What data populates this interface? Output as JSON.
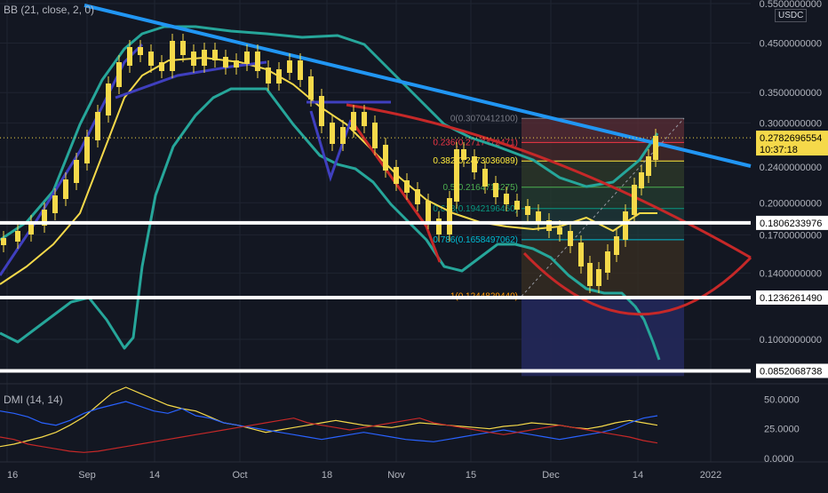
{
  "indicators": {
    "bb_label": "BB (21, close, 2, 0)",
    "dmi_label": "DMI (14, 14)"
  },
  "currency_badge": "USDC",
  "price_axis": {
    "ticks": [
      {
        "label": "0.5500000000",
        "value": 0.55
      },
      {
        "label": "0.4500000000",
        "value": 0.45
      },
      {
        "label": "0.3500000000",
        "value": 0.35
      },
      {
        "label": "0.3000000000",
        "value": 0.3
      },
      {
        "label": "0.2400000000",
        "value": 0.24
      },
      {
        "label": "0.2000000000",
        "value": 0.2
      },
      {
        "label": "0.1700000000",
        "value": 0.17
      },
      {
        "label": "0.1400000000",
        "value": 0.14
      },
      {
        "label": "0.1000000000",
        "value": 0.1
      }
    ],
    "tags": [
      {
        "label": "0.2782696554",
        "sub": "10:37:18",
        "value": 0.2782696554,
        "bg": "#f5d94a",
        "fg": "#000000"
      },
      {
        "label": "0.1806233976",
        "value": 0.1806233976,
        "bg": "#ffffff",
        "fg": "#000000"
      },
      {
        "label": "0.1236261490",
        "value": 0.123626149,
        "bg": "#ffffff",
        "fg": "#000000"
      },
      {
        "label": "0.0852068738",
        "value": 0.0852068738,
        "bg": "#ffffff",
        "fg": "#000000"
      }
    ]
  },
  "time_axis": [
    "16",
    "Sep",
    "14",
    "Oct",
    "18",
    "Nov",
    "15",
    "Dec",
    "14",
    "2022"
  ],
  "dmi_axis": [
    "50.0000",
    "25.0000",
    "0.0000"
  ],
  "fib_levels": [
    {
      "label": "0(0.3070412100)",
      "value": 0.30704121,
      "color": "#787b86"
    },
    {
      "label": "0.236(0.2717472471)",
      "value": 0.2717472471,
      "color": "#f23645"
    },
    {
      "label": "0.382(0.2473036089)",
      "value": 0.2473036089,
      "color": "#ffeb3b"
    },
    {
      "label": "0.5(0.2164714275)",
      "value": 0.2164714275,
      "color": "#4caf50"
    },
    {
      "label": "0.618(0.1942196460)",
      "value": 0.194219646,
      "color": "#089981"
    },
    {
      "label": "0.786(0.1658497062)",
      "value": 0.1658497062,
      "color": "#00bcd4"
    },
    {
      "label": "1(0.1244829440)",
      "value": 0.124482944,
      "color": "#ff9800"
    }
  ],
  "colors": {
    "background": "#131722",
    "up_candle": "#f5d94a",
    "down_candle": "#f5d94a",
    "bollinger_band": "#26a69a",
    "bollinger_basis": "#f5d94a",
    "trendline_main": "#2196f3",
    "trendline_red": "#c62828",
    "channel": "#3f3fbf",
    "support": "#ffffff",
    "dmi_plus": "#2962ff",
    "dmi_minus": "#c62828",
    "adx": "#f5d94a"
  },
  "chart_data": {
    "type": "candlestick",
    "symbol_quote": "USDC",
    "scale": "log",
    "ylim": [
      0.08,
      0.56
    ],
    "x_ticks": [
      "16",
      "Sep",
      "14",
      "Oct",
      "18",
      "Nov",
      "15",
      "Dec",
      "14",
      "2022"
    ],
    "last_price": 0.2782696554,
    "horizontal_levels": [
      0.1806233976,
      0.123626149,
      0.0852068738
    ],
    "fibonacci": [
      0.30704121,
      0.2717472471,
      0.2473036089,
      0.2164714275,
      0.194219646,
      0.1658497062,
      0.124482944
    ],
    "dmi": {
      "ylim": [
        0,
        60
      ],
      "ticks": [
        50,
        25,
        0
      ]
    }
  }
}
